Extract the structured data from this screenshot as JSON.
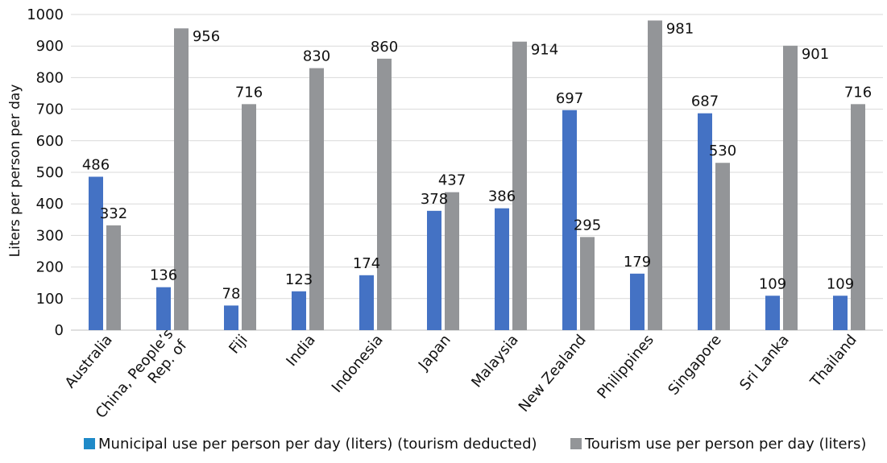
{
  "chart_data": {
    "type": "bar",
    "title": "",
    "xlabel": "",
    "ylabel": "Liters per person per day",
    "ylim": [
      0,
      1000
    ],
    "yticks": [
      0,
      100,
      200,
      300,
      400,
      500,
      600,
      700,
      800,
      900,
      1000
    ],
    "grid": "horizontal",
    "legend_position": "bottom",
    "categories": [
      [
        "Australia"
      ],
      [
        "China, People’s",
        "Rep. of"
      ],
      [
        "Fiji"
      ],
      [
        "India"
      ],
      [
        "Indonesia"
      ],
      [
        "Japan"
      ],
      [
        "Malaysia"
      ],
      [
        "New Zealand"
      ],
      [
        "Philippines"
      ],
      [
        "Singapore"
      ],
      [
        "Sri Lanka"
      ],
      [
        "Thailand"
      ]
    ],
    "series": [
      {
        "name": "Municipal use per person per day (liters) (tourism deducted)",
        "color": "#4472C4",
        "legend_color": "#1F8AC8",
        "values": [
          486,
          136,
          78,
          123,
          174,
          378,
          386,
          697,
          179,
          687,
          109,
          109
        ]
      },
      {
        "name": "Tourism use per person per day (liters)",
        "color": "#939598",
        "legend_color": "#939598",
        "values": [
          332,
          956,
          716,
          830,
          860,
          437,
          914,
          295,
          981,
          530,
          901,
          716
        ]
      }
    ]
  }
}
